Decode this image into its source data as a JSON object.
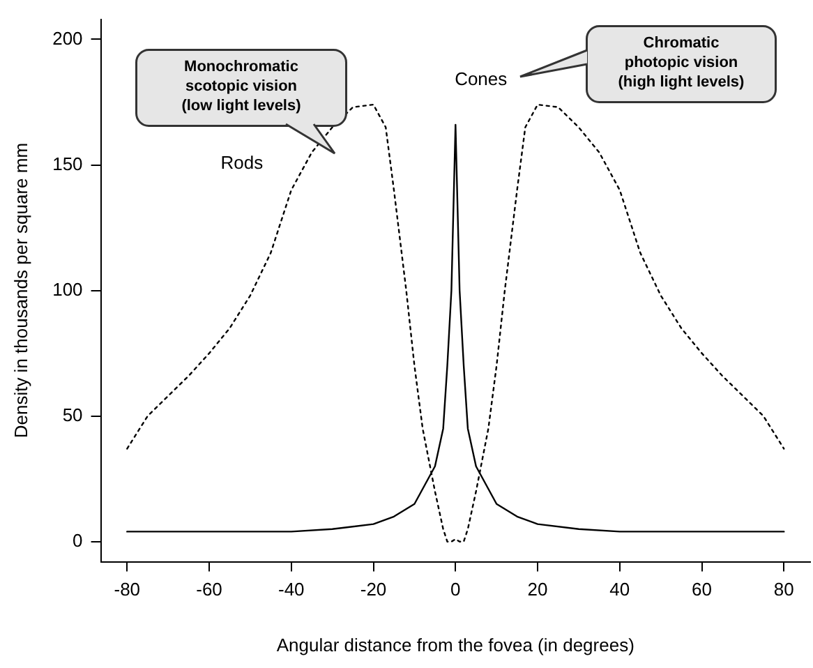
{
  "chart_data": {
    "type": "line",
    "xlabel": "Angular distance from the fovea (in degrees)",
    "ylabel": "Density in thousands per square mm",
    "xlim": [
      -86.4,
      86.4
    ],
    "xticks": [
      -80,
      -60,
      -40,
      -20,
      0,
      20,
      40,
      60,
      80
    ],
    "ylim": [
      -8,
      208
    ],
    "yticks": [
      0,
      50,
      100,
      150,
      200
    ],
    "grid": false,
    "legend": false,
    "marker": "none",
    "series": [
      {
        "name": "Rods",
        "color": "#000000",
        "line_style": "dotted",
        "x": [
          -80,
          -75,
          -70,
          -65,
          -60,
          -55,
          -50,
          -45,
          -40,
          -35,
          -30,
          -25,
          -20,
          -17,
          -15,
          -12,
          -10,
          -8,
          -5,
          -3,
          -2,
          -1,
          0,
          1,
          2,
          3,
          5,
          8,
          10,
          12,
          15,
          17,
          20,
          25,
          30,
          35,
          40,
          45,
          50,
          55,
          60,
          65,
          70,
          75,
          80
        ],
        "values": [
          37,
          50,
          58,
          66,
          75,
          85,
          98,
          115,
          140,
          155,
          165,
          173,
          174,
          165,
          140,
          100,
          70,
          45,
          20,
          5,
          0,
          0,
          1,
          0,
          0,
          5,
          20,
          45,
          70,
          100,
          140,
          165,
          174,
          173,
          165,
          155,
          140,
          115,
          98,
          85,
          75,
          66,
          58,
          50,
          37
        ]
      },
      {
        "name": "Cones",
        "color": "#000000",
        "line_style": "solid",
        "x": [
          -80,
          -60,
          -40,
          -30,
          -20,
          -15,
          -10,
          -5,
          -3,
          -2,
          -1,
          0,
          1,
          2,
          3,
          5,
          10,
          15,
          20,
          30,
          40,
          60,
          80
        ],
        "values": [
          4,
          4,
          4,
          5,
          7,
          10,
          15,
          30,
          45,
          70,
          100,
          166,
          100,
          70,
          45,
          30,
          15,
          10,
          7,
          5,
          4,
          4,
          4
        ]
      }
    ],
    "annotations": [
      "Monochromatic\nscotopic vision\n(low light levels)",
      "Chromatic\nphotopic vision\n(high light levels)"
    ]
  }
}
